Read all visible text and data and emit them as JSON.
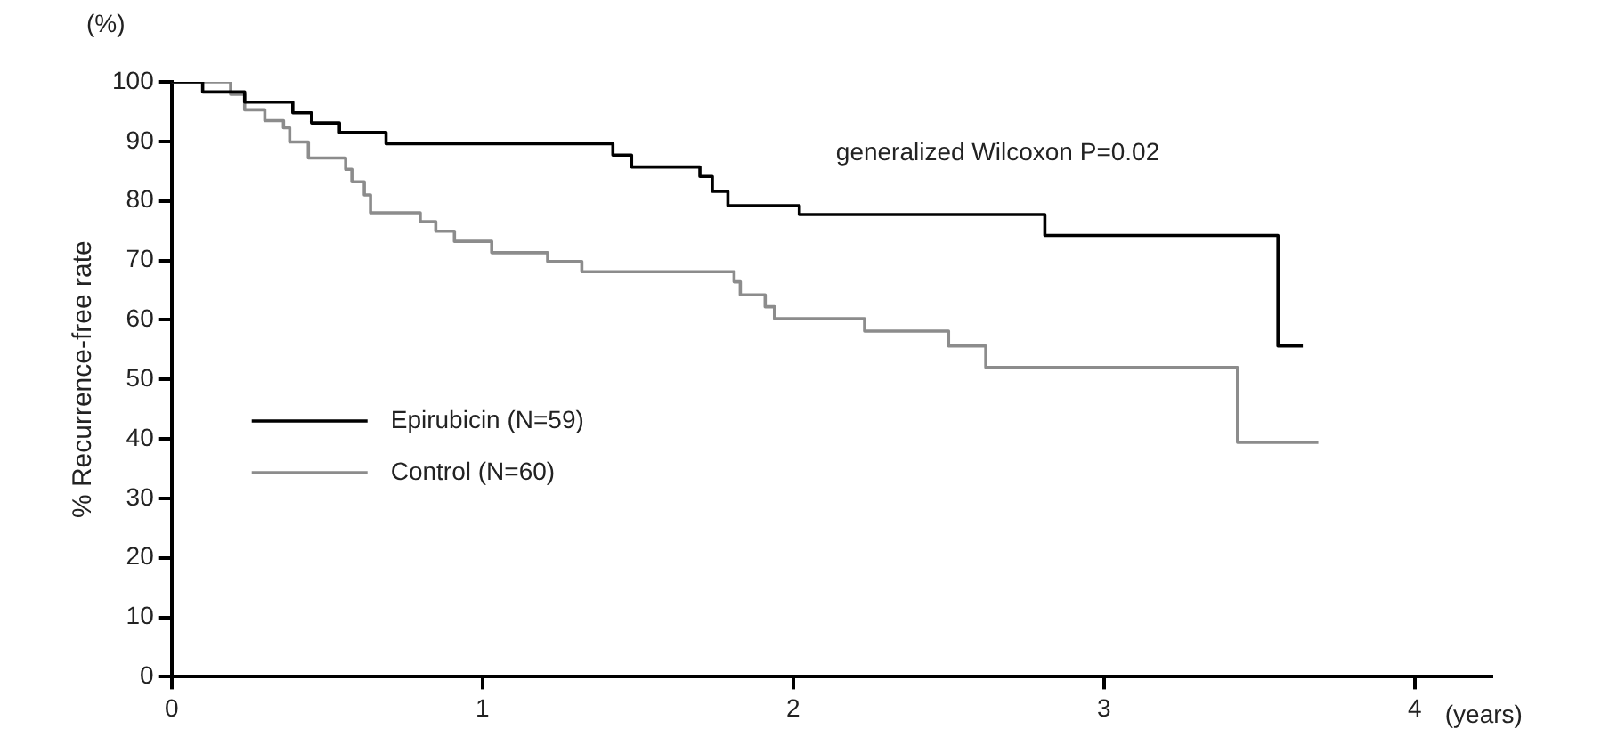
{
  "chart_data": {
    "type": "step",
    "ylabel": "% Recurrence-free rate",
    "xlabel": "(years)",
    "annotations": [
      "generalized Wilcoxon P=0.02",
      "(%)"
    ],
    "xlim": [
      0,
      4.25
    ],
    "xticks": [
      0,
      1,
      2,
      3,
      4
    ],
    "ylim": [
      0,
      100
    ],
    "yticks": [
      0,
      10,
      20,
      30,
      40,
      50,
      60,
      70,
      80,
      90,
      100
    ],
    "grid": false,
    "legend": "left",
    "series": [
      {
        "name": "Epirubicin (N=59)",
        "color": "#000000",
        "x": [
          0,
          0.1,
          0.235,
          0.39,
          0.45,
          0.54,
          0.69,
          1.42,
          1.48,
          1.7,
          1.74,
          1.79,
          2.02,
          2.81,
          3.56,
          3.64
        ],
        "values": [
          100,
          98.3,
          96.6,
          94.8,
          93.1,
          91.5,
          89.6,
          87.7,
          85.7,
          84.1,
          81.6,
          79.2,
          77.7,
          74.2,
          55.6,
          55.6
        ]
      },
      {
        "name": "Control (N=60)",
        "color": "#8c8c8c",
        "x": [
          0,
          0.19,
          0.235,
          0.3,
          0.36,
          0.38,
          0.44,
          0.56,
          0.58,
          0.62,
          0.64,
          0.8,
          0.85,
          0.91,
          1.03,
          1.21,
          1.32,
          1.81,
          1.83,
          1.91,
          1.94,
          2.23,
          2.5,
          2.62,
          3.43,
          3.69
        ],
        "values": [
          100,
          97.9,
          95.3,
          93.5,
          92.3,
          89.9,
          87.2,
          85.3,
          83.2,
          81,
          78,
          76.5,
          74.9,
          73.2,
          71.3,
          69.8,
          68.1,
          66.4,
          64.2,
          62.2,
          60.2,
          58.1,
          55.6,
          52,
          39.4,
          39.4
        ]
      }
    ]
  }
}
